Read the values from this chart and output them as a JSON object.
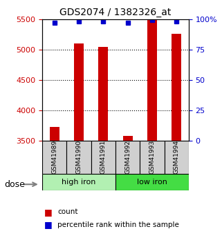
{
  "title": "GDS2074 / 1382326_at",
  "samples": [
    "GSM41989",
    "GSM41990",
    "GSM41991",
    "GSM41992",
    "GSM41993",
    "GSM41994"
  ],
  "counts": [
    3720,
    5100,
    5040,
    3570,
    5490,
    5260
  ],
  "percentile_ranks": [
    97,
    98,
    98,
    97,
    99,
    98
  ],
  "group_colors": {
    "high iron": "#b2f0b2",
    "low iron": "#44dd44"
  },
  "y_min": 3500,
  "y_max": 5500,
  "y_ticks_left": [
    3500,
    4000,
    4500,
    5000,
    5500
  ],
  "y_ticks_right": [
    0,
    25,
    50,
    75,
    100
  ],
  "bar_color": "#cc0000",
  "dot_color": "#0000cc",
  "background_color": "#ffffff",
  "plot_bg": "#ffffff",
  "legend_count_color": "#cc0000",
  "legend_pct_color": "#0000cc",
  "left_tick_color": "#cc0000",
  "right_tick_color": "#0000cc",
  "grid_color": "#000000",
  "bar_width": 0.4,
  "dose_label": "dose",
  "count_label": "count",
  "percentile_label": "percentile rank within the sample"
}
